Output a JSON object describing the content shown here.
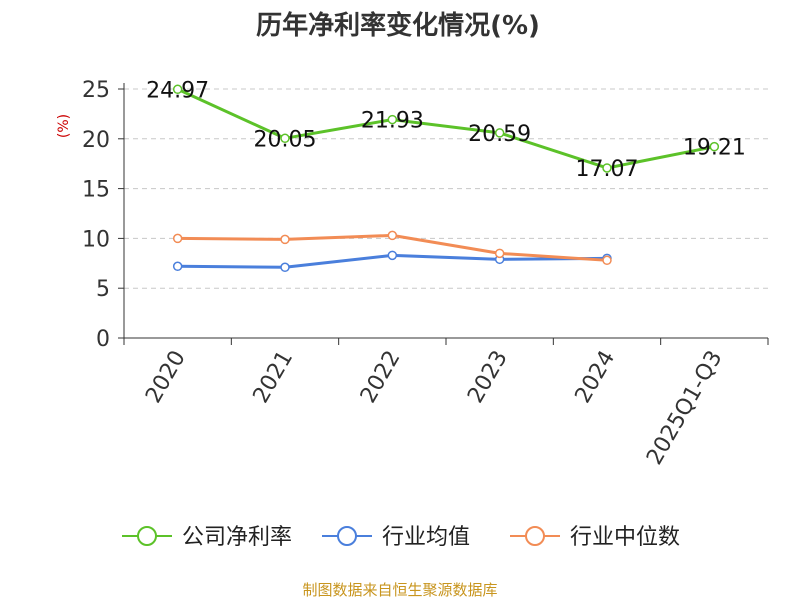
{
  "chart_data": {
    "type": "line",
    "title": "历年净利率变化情况(%)",
    "ylabel": "(%)",
    "categories": [
      "2020",
      "2021",
      "2022",
      "2023",
      "2024",
      "2025Q1-Q3"
    ],
    "ylim": [
      0,
      25
    ],
    "yticks": [
      0,
      5,
      10,
      15,
      20,
      25
    ],
    "grid": true,
    "legend_position": "bottom",
    "series": [
      {
        "name": "公司净利率",
        "color": "#5cc229",
        "values": [
          24.97,
          20.05,
          21.93,
          20.59,
          17.07,
          19.21
        ],
        "labels": [
          "24.97",
          "20.05",
          "21.93",
          "20.59",
          "17.07",
          "19.21"
        ]
      },
      {
        "name": "行业均值",
        "color": "#4a7fdc",
        "values": [
          7.2,
          7.1,
          8.3,
          7.9,
          8.0,
          null
        ]
      },
      {
        "name": "行业中位数",
        "color": "#f28c55",
        "values": [
          10.0,
          9.9,
          10.3,
          8.5,
          7.8,
          null
        ]
      }
    ]
  },
  "footer": {
    "source": "制图数据来自恒生聚源数据库"
  }
}
